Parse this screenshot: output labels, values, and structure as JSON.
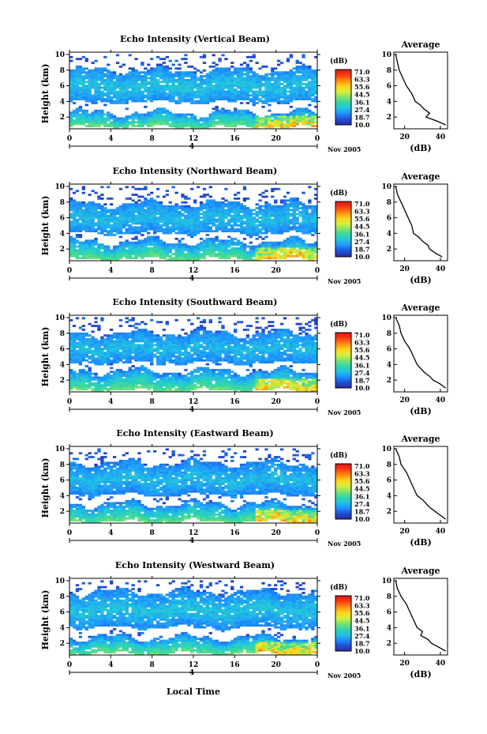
{
  "figure": {
    "xlabel": "Local Time",
    "day_label": "4",
    "month_label": "Nov 2005",
    "ylabel": "Height (km)",
    "avg_title": "Average",
    "avg_xlabel": "(dB)",
    "colorbar_title": "(dB)",
    "colorbar_ticks": [
      "71.0",
      "63.3",
      "55.6",
      "44.5",
      "36.1",
      "27.4",
      "18.7",
      "10.0"
    ],
    "colorbar_colors": [
      "#2b2b9e",
      "#1f4fd8",
      "#1e90ff",
      "#22c4e0",
      "#33d6a6",
      "#7fe36a",
      "#d8ef3c",
      "#ffd21a",
      "#ff8a10",
      "#ff3a10",
      "#d8141a"
    ],
    "x_ticks": [
      "0",
      "4",
      "8",
      "12",
      "16",
      "20",
      "0"
    ],
    "y_ticks": [
      "10",
      "8",
      "6",
      "4",
      "2"
    ]
  },
  "chart_data": [
    {
      "type": "heatmap",
      "title": "Echo Intensity (Vertical Beam)",
      "xlabel": "Local Time",
      "ylabel": "Height (km)",
      "xlim": [
        0,
        24
      ],
      "ylim": [
        0.5,
        10.3
      ],
      "zlim": [
        10.0,
        71.0
      ],
      "layers": [
        {
          "name": "upper",
          "bottom": 3.9,
          "top": 8.0,
          "value": 26
        },
        {
          "name": "lower",
          "bottom": 0.7,
          "top": 2.6,
          "value": 32
        }
      ],
      "average": {
        "title": "Average",
        "xlabel": "(dB)",
        "xticks": [
          "20",
          "40"
        ],
        "xlim": [
          14,
          44
        ],
        "height": [
          10.0,
          9.0,
          8.0,
          7.0,
          6.0,
          5.0,
          4.0,
          3.5,
          3.0,
          2.5,
          2.0,
          1.5,
          1.0
        ],
        "db": [
          15,
          16,
          17,
          19,
          21,
          24,
          26,
          29,
          31,
          34,
          32,
          38,
          43
        ]
      }
    },
    {
      "type": "heatmap",
      "title": "Echo Intensity (Northward Beam)",
      "xlabel": "Local Time",
      "ylabel": "Height (km)",
      "xlim": [
        0,
        24
      ],
      "ylim": [
        0.5,
        10.3
      ],
      "zlim": [
        10.0,
        71.0
      ],
      "layers": [
        {
          "name": "upper",
          "bottom": 4.0,
          "top": 7.8,
          "value": 25
        },
        {
          "name": "lower",
          "bottom": 0.7,
          "top": 3.0,
          "value": 31
        }
      ],
      "average": {
        "title": "Average",
        "xlabel": "(dB)",
        "xticks": [
          "20",
          "40"
        ],
        "xlim": [
          14,
          44
        ],
        "height": [
          10.0,
          9.0,
          8.0,
          7.0,
          6.0,
          5.0,
          4.0,
          3.5,
          3.0,
          2.5,
          2.0,
          1.5,
          1.0
        ],
        "db": [
          15,
          16,
          18,
          20,
          22,
          24,
          25,
          28,
          30,
          33,
          34,
          37,
          41
        ]
      }
    },
    {
      "type": "heatmap",
      "title": "Echo Intensity (Southward Beam)",
      "xlabel": "Local Time",
      "ylabel": "Height (km)",
      "xlim": [
        0,
        24
      ],
      "ylim": [
        0.5,
        10.3
      ],
      "zlim": [
        10.0,
        71.0
      ],
      "layers": [
        {
          "name": "upper",
          "bottom": 4.2,
          "top": 8.0,
          "value": 25
        },
        {
          "name": "lower",
          "bottom": 0.7,
          "top": 3.2,
          "value": 33
        }
      ],
      "average": {
        "title": "Average",
        "xlabel": "(dB)",
        "xticks": [
          "20",
          "40"
        ],
        "xlim": [
          14,
          44
        ],
        "height": [
          10.0,
          9.0,
          8.0,
          7.0,
          6.0,
          5.0,
          4.0,
          3.5,
          3.0,
          2.5,
          2.0,
          1.5,
          1.0
        ],
        "db": [
          15,
          17,
          18,
          20,
          23,
          25,
          27,
          29,
          31,
          34,
          36,
          40,
          43
        ]
      }
    },
    {
      "type": "heatmap",
      "title": "Echo Intensity (Eastward Beam)",
      "xlabel": "Local Time",
      "ylabel": "Height (km)",
      "xlim": [
        0,
        24
      ],
      "ylim": [
        0.5,
        10.3
      ],
      "zlim": [
        10.0,
        71.0
      ],
      "layers": [
        {
          "name": "upper",
          "bottom": 4.1,
          "top": 8.2,
          "value": 25
        },
        {
          "name": "lower",
          "bottom": 0.7,
          "top": 3.0,
          "value": 32
        }
      ],
      "average": {
        "title": "Average",
        "xlabel": "(dB)",
        "xticks": [
          "20",
          "40"
        ],
        "xlim": [
          14,
          44
        ],
        "height": [
          10.0,
          9.0,
          8.0,
          7.0,
          6.0,
          5.0,
          4.0,
          3.5,
          3.0,
          2.5,
          2.0,
          1.5,
          1.0
        ],
        "db": [
          15,
          17,
          18,
          21,
          23,
          25,
          27,
          30,
          32,
          34,
          37,
          40,
          43
        ]
      }
    },
    {
      "type": "heatmap",
      "title": "Echo Intensity (Westward Beam)",
      "xlabel": "Local Time",
      "ylabel": "Height (km)",
      "xlim": [
        0,
        24
      ],
      "ylim": [
        0.5,
        10.3
      ],
      "zlim": [
        10.0,
        71.0
      ],
      "layers": [
        {
          "name": "upper",
          "bottom": 4.0,
          "top": 8.6,
          "value": 26
        },
        {
          "name": "lower",
          "bottom": 0.7,
          "top": 2.8,
          "value": 33
        }
      ],
      "average": {
        "title": "Average",
        "xlabel": "(dB)",
        "xticks": [
          "20",
          "40"
        ],
        "xlim": [
          14,
          44
        ],
        "height": [
          10.0,
          9.0,
          8.0,
          7.0,
          6.0,
          5.0,
          4.0,
          3.5,
          3.0,
          2.5,
          2.0,
          1.5,
          1.0
        ],
        "db": [
          15,
          16,
          18,
          21,
          23,
          25,
          27,
          30,
          29,
          33,
          35,
          39,
          43
        ]
      }
    }
  ]
}
